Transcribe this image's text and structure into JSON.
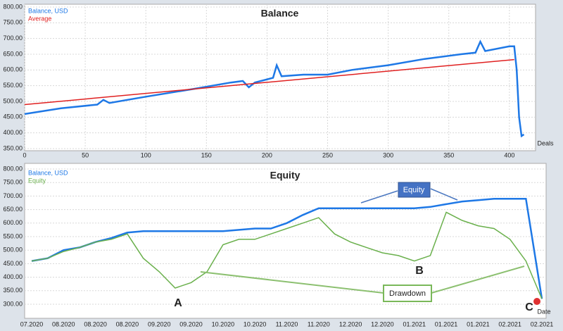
{
  "chart_data": [
    {
      "type": "line",
      "title": "Balance",
      "xlabel": "Deals",
      "x": [
        0,
        30,
        60,
        65,
        70,
        100,
        140,
        170,
        180,
        185,
        190,
        205,
        208,
        212,
        230,
        250,
        270,
        300,
        330,
        360,
        372,
        376,
        380,
        400,
        404,
        406,
        408,
        410,
        412
      ],
      "xlim": [
        0,
        421
      ],
      "xticks": [
        0,
        50,
        100,
        150,
        200,
        250,
        300,
        350,
        400
      ],
      "ylim": [
        350,
        800
      ],
      "yticks": [
        {
          "value": 350,
          "label": "350.00"
        },
        {
          "value": 400,
          "label": "400.00"
        },
        {
          "value": 450,
          "label": "450.00"
        },
        {
          "value": 500,
          "label": "500.00"
        },
        {
          "value": 550,
          "label": "550.00"
        },
        {
          "value": 600,
          "label": "600.00"
        },
        {
          "value": 650,
          "label": "650.00"
        },
        {
          "value": 700,
          "label": "700.00"
        },
        {
          "value": 750,
          "label": "750.00"
        },
        {
          "value": 800,
          "label": "800.00"
        }
      ],
      "grid": true,
      "series": [
        {
          "name": "Balance, USD",
          "color": "#1e78e6",
          "values": [
            460,
            478,
            490,
            505,
            495,
            515,
            540,
            560,
            565,
            545,
            560,
            575,
            615,
            580,
            585,
            585,
            600,
            615,
            635,
            650,
            655,
            690,
            660,
            675,
            675,
            600,
            450,
            390,
            395
          ]
        },
        {
          "name": "Average",
          "color": "#e02020",
          "x": [
            0,
            404
          ],
          "values": [
            490,
            633
          ]
        }
      ]
    },
    {
      "type": "line",
      "title": "Equity",
      "xlabel": "Date",
      "categories": [
        "07.2020",
        null,
        "08.2020",
        null,
        "08.2020",
        null,
        "08.2020",
        null,
        "09.2020",
        null,
        "09.2020",
        null,
        "10.2020",
        null,
        "10.2020",
        null,
        "11.2020",
        null,
        "11.2020",
        null,
        "12.2020",
        null,
        "12.2020",
        null,
        "01.2021",
        null,
        "01.2021",
        null,
        "01.2021",
        null,
        "02.2021",
        null,
        "02.2021"
      ],
      "ylim": [
        300,
        800
      ],
      "yticks": [
        {
          "value": 300,
          "label": "300.00"
        },
        {
          "value": 350,
          "label": "350.00"
        },
        {
          "value": 400,
          "label": "400.00"
        },
        {
          "value": 450,
          "label": "450.00"
        },
        {
          "value": 500,
          "label": "500.00"
        },
        {
          "value": 550,
          "label": "550.00"
        },
        {
          "value": 600,
          "label": "600.00"
        },
        {
          "value": 650,
          "label": "650.00"
        },
        {
          "value": 700,
          "label": "700.00"
        },
        {
          "value": 750,
          "label": "750.00"
        },
        {
          "value": 800,
          "label": "800.00"
        }
      ],
      "grid": true,
      "series": [
        {
          "name": "Balance, USD",
          "color": "#1e78e6",
          "values": [
            460,
            470,
            500,
            510,
            530,
            545,
            565,
            570,
            570,
            570,
            570,
            570,
            570,
            575,
            580,
            580,
            600,
            630,
            655,
            655,
            655,
            655,
            655,
            655,
            655,
            660,
            670,
            680,
            685,
            690,
            690,
            690,
            320
          ]
        },
        {
          "name": "Equity",
          "color": "#6ab04c",
          "values": [
            460,
            470,
            495,
            510,
            530,
            540,
            560,
            470,
            420,
            360,
            380,
            420,
            520,
            540,
            540,
            560,
            580,
            600,
            620,
            560,
            530,
            510,
            490,
            480,
            460,
            480,
            640,
            610,
            590,
            580,
            540,
            460,
            320
          ]
        }
      ],
      "annotations": [
        "Equity",
        "Drawdown",
        "A",
        "B",
        "C"
      ]
    }
  ]
}
